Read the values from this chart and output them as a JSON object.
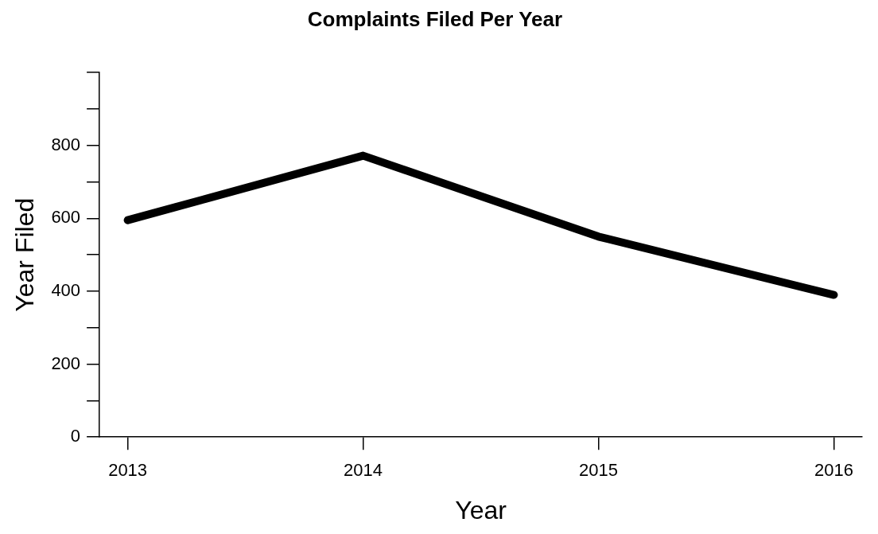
{
  "chart_data": {
    "type": "line",
    "title": "Complaints Filed Per Year",
    "xlabel": "Year",
    "ylabel": "Year Filed",
    "x": [
      2013,
      2014,
      2015,
      2016
    ],
    "series": [
      {
        "color": "#000000",
        "values": [
          595,
          772,
          550,
          390
        ]
      }
    ],
    "xlim": [
      2012.88,
      2016.12
    ],
    "xticks": [
      2013,
      2014,
      2015,
      2016
    ],
    "ylim": [
      0,
      1000
    ],
    "yticks": [
      0,
      {
        "value": 100,
        "label": null
      },
      200,
      {
        "value": 300,
        "label": null
      },
      400,
      {
        "value": 500,
        "label": null
      },
      600,
      {
        "value": 700,
        "label": null
      },
      800,
      {
        "value": 900,
        "label": null
      },
      {
        "value": 1000,
        "label": null
      }
    ],
    "grid": false,
    "legend": false,
    "marker": "none",
    "line_style": "solid"
  }
}
